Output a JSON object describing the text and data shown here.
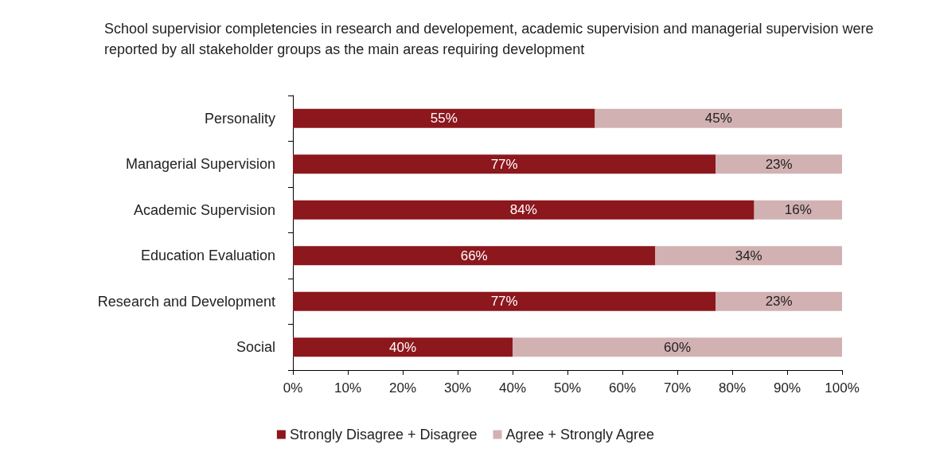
{
  "chart_data": {
    "type": "bar",
    "orientation": "horizontal",
    "stacked": true,
    "title": "School supervisior completencies in research and developement, academic supervision and managerial supervision were reported by all stakeholder groups as the main areas requiring development",
    "categories": [
      "Personality",
      "Managerial Supervision",
      "Academic Supervision",
      "Education Evaluation",
      "Research and Development",
      "Social"
    ],
    "series": [
      {
        "name": "Strongly Disagree + Disagree",
        "color": "#8c171c",
        "values": [
          55,
          77,
          84,
          66,
          77,
          40
        ],
        "value_labels": [
          "55%",
          "77%",
          "84%",
          "66%",
          "77%",
          "40%"
        ]
      },
      {
        "name": "Agree + Strongly Agree",
        "color": "#d2b1b3",
        "values": [
          45,
          23,
          16,
          34,
          23,
          60
        ],
        "value_labels": [
          "45%",
          "23%",
          "16%",
          "34%",
          "23%",
          "60%"
        ]
      }
    ],
    "xlim": [
      0,
      100
    ],
    "xticks": [
      {
        "value": 0,
        "label": "0%"
      },
      {
        "value": 10,
        "label": "10%"
      },
      {
        "value": 20,
        "label": "20%"
      },
      {
        "value": 30,
        "label": "30%"
      },
      {
        "value": 40,
        "label": "40%"
      },
      {
        "value": 50,
        "label": "50%"
      },
      {
        "value": 60,
        "label": "60%"
      },
      {
        "value": 70,
        "label": "70%"
      },
      {
        "value": 80,
        "label": "80%"
      },
      {
        "value": 90,
        "label": "90%"
      },
      {
        "value": 100,
        "label": "100%"
      }
    ],
    "grid": false,
    "legend": "bottom"
  }
}
